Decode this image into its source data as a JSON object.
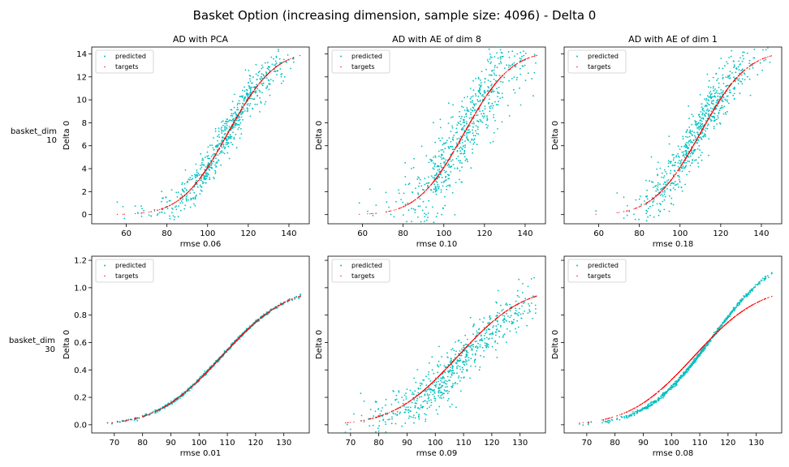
{
  "figure": {
    "title": "Basket Option (increasing dimension, sample size: 4096) - Delta 0",
    "row_labels": [
      {
        "line1": "basket_dim",
        "line2": "10"
      },
      {
        "line1": "basket_dim",
        "line2": "30"
      }
    ],
    "legend_labels": {
      "predicted": "predicted",
      "targets": "targets"
    },
    "colors": {
      "predicted": "#00bfbf",
      "targets": "#ff0000"
    }
  },
  "chart_data": [
    {
      "type": "scatter",
      "row": 0,
      "col": 0,
      "title": "AD with PCA",
      "xlabel": "rmse 0.06",
      "ylabel": "Delta 0",
      "xlim": [
        43,
        150
      ],
      "ylim": [
        -0.8,
        14.6
      ],
      "xticks": [
        60,
        80,
        100,
        120,
        140
      ],
      "xtick_labels": [
        "60",
        "80",
        "100",
        "120",
        "140"
      ],
      "yticks": [
        0,
        2,
        4,
        6,
        8,
        10,
        12,
        14
      ],
      "ytick_labels": [
        "0",
        "2",
        "4",
        "6",
        "8",
        "10",
        "12",
        "14"
      ],
      "legend": "top-left",
      "curve": {
        "x_range": [
          48,
          146
        ],
        "mean": 110,
        "std": 18,
        "scale": 14.2
      },
      "series": [
        {
          "name": "predicted",
          "noise": 0.06
        },
        {
          "name": "targets",
          "noise": 0
        }
      ]
    },
    {
      "type": "scatter",
      "row": 0,
      "col": 1,
      "title": "AD with AE of dim 8",
      "xlabel": "rmse 0.10",
      "ylabel": "Delta 0",
      "xlim": [
        43,
        150
      ],
      "ylim": [
        -0.8,
        14.6
      ],
      "xticks": [
        60,
        80,
        100,
        120,
        140
      ],
      "xtick_labels": [
        "60",
        "80",
        "100",
        "120",
        "140"
      ],
      "yticks": [
        0,
        2,
        4,
        6,
        8,
        10,
        12,
        14
      ],
      "ytick_labels": [],
      "legend": "top-left",
      "curve": {
        "x_range": [
          48,
          146
        ],
        "mean": 110,
        "std": 18,
        "scale": 14.2
      },
      "series": [
        {
          "name": "predicted",
          "noise": 0.12
        },
        {
          "name": "targets",
          "noise": 0
        }
      ]
    },
    {
      "type": "scatter",
      "row": 0,
      "col": 2,
      "title": "AD with AE of dim 1",
      "xlabel": "rmse 0.18",
      "ylabel": "Delta 0",
      "xlim": [
        43,
        150
      ],
      "ylim": [
        -0.8,
        14.6
      ],
      "xticks": [
        60,
        80,
        100,
        120,
        140
      ],
      "xtick_labels": [
        "60",
        "80",
        "100",
        "120",
        "140"
      ],
      "yticks": [
        0,
        2,
        4,
        6,
        8,
        10,
        12,
        14
      ],
      "ytick_labels": [],
      "legend": "top-left",
      "curve": {
        "x_range": [
          48,
          146
        ],
        "mean": 110,
        "std": 18,
        "scale": 14.2
      },
      "series": [
        {
          "name": "predicted",
          "noise": 0.08,
          "shift": 1.5
        },
        {
          "name": "targets",
          "noise": 0
        }
      ]
    },
    {
      "type": "scatter",
      "row": 1,
      "col": 0,
      "title": "",
      "xlabel": "rmse 0.01",
      "ylabel": "Delta 0",
      "xlim": [
        62,
        139
      ],
      "ylim": [
        -0.06,
        1.23
      ],
      "xticks": [
        70,
        80,
        90,
        100,
        110,
        120,
        130
      ],
      "xtick_labels": [
        "70",
        "80",
        "90",
        "100",
        "110",
        "120",
        "130"
      ],
      "yticks": [
        0.0,
        0.2,
        0.4,
        0.6,
        0.8,
        1.0,
        1.2
      ],
      "ytick_labels": [
        "0.0",
        "0.2",
        "0.4",
        "0.6",
        "0.8",
        "1.0",
        "1.2"
      ],
      "legend": "top-left",
      "curve": {
        "x_range": [
          66,
          136
        ],
        "mean": 108,
        "std": 18,
        "scale": 1.0
      },
      "series": [
        {
          "name": "predicted",
          "noise": 0.006
        },
        {
          "name": "targets",
          "noise": 0
        }
      ]
    },
    {
      "type": "scatter",
      "row": 1,
      "col": 1,
      "title": "",
      "xlabel": "rmse 0.09",
      "ylabel": "Delta 0",
      "xlim": [
        62,
        139
      ],
      "ylim": [
        -0.06,
        1.23
      ],
      "xticks": [
        70,
        80,
        90,
        100,
        110,
        120,
        130
      ],
      "xtick_labels": [
        "70",
        "80",
        "90",
        "100",
        "110",
        "120",
        "130"
      ],
      "yticks": [
        0.0,
        0.2,
        0.4,
        0.6,
        0.8,
        1.0,
        1.2
      ],
      "ytick_labels": [],
      "legend": "top-left",
      "curve": {
        "x_range": [
          66,
          136
        ],
        "mean": 108,
        "std": 18,
        "scale": 1.0
      },
      "series": [
        {
          "name": "predicted",
          "noise": 0.09,
          "shift": -3
        },
        {
          "name": "targets",
          "noise": 0
        }
      ]
    },
    {
      "type": "scatter",
      "row": 1,
      "col": 2,
      "title": "",
      "xlabel": "rmse 0.08",
      "ylabel": "Delta 0",
      "xlim": [
        62,
        139
      ],
      "ylim": [
        -0.06,
        1.23
      ],
      "xticks": [
        70,
        80,
        90,
        100,
        110,
        120,
        130
      ],
      "xtick_labels": [
        "70",
        "80",
        "90",
        "100",
        "110",
        "120",
        "130"
      ],
      "yticks": [
        0.0,
        0.2,
        0.4,
        0.6,
        0.8,
        1.0,
        1.2
      ],
      "ytick_labels": [],
      "legend": "top-left",
      "curve": {
        "x_range": [
          66,
          136
        ],
        "mean": 108,
        "std": 18,
        "scale": 1.0
      },
      "series": [
        {
          "name": "predicted",
          "noise": 0.007,
          "shift": -6,
          "scale": 1.25
        },
        {
          "name": "targets",
          "noise": 0
        }
      ]
    }
  ]
}
